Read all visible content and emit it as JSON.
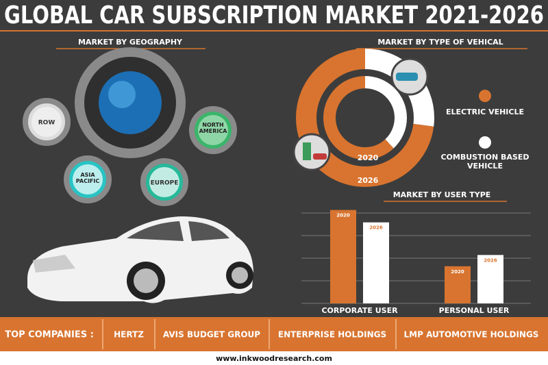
{
  "title": "GLOBAL CAR SUBSCRIPTION MARKET 2021-2026",
  "geography": {
    "heading": "MARKET BY GEOGRAPHY",
    "regions": [
      "ROW",
      "NORTH AMERICA",
      "ASIA PACIFIC",
      "EUROPE"
    ]
  },
  "chart_data": [
    {
      "type": "donut",
      "title": "MARKET BY TYPE OF VEHICAL",
      "categories": [
        "ELECTRIC VEHICLE",
        "COMBUSTION BASED VEHICLE"
      ],
      "colors": [
        "#d8742f",
        "#ffffff"
      ],
      "series": [
        {
          "name": "2020",
          "values": [
            62,
            38
          ]
        },
        {
          "name": "2026",
          "values": [
            73,
            27
          ]
        }
      ]
    },
    {
      "type": "bar",
      "title": "MARKET BY USER TYPE",
      "categories": [
        "CORPORATE USER",
        "PERSONAL USER"
      ],
      "series": [
        {
          "name": "2020",
          "color": "#d8742f",
          "values": [
            4.15,
            1.65
          ]
        },
        {
          "name": "2026",
          "color": "#ffffff",
          "values": [
            3.6,
            2.15
          ]
        }
      ],
      "ylim": [
        0,
        4.2
      ]
    }
  ],
  "companies": {
    "label": "TOP COMPANIES :",
    "names": [
      "HERTZ",
      "AVIS BUDGET GROUP",
      "ENTERPRISE HOLDINGS",
      "LMP AUTOMOTIVE HOLDINGS"
    ]
  },
  "website": "www.inkwoodresearch.com"
}
